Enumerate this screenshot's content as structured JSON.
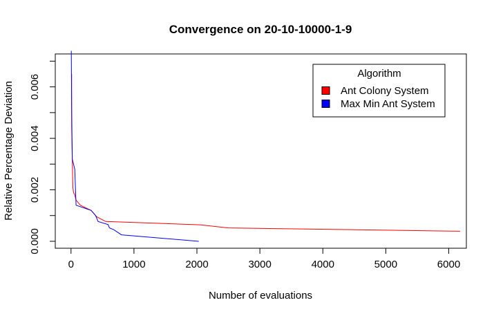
{
  "chart_data": {
    "type": "line",
    "title": "Convergence on 20-10-10000-1-9",
    "xlabel": "Number of evaluations",
    "ylabel": "Relative Percentage Deviation",
    "xlim": [
      -250,
      6280
    ],
    "ylim": [
      -0.00027,
      0.00728
    ],
    "x_ticks": [
      0,
      1000,
      2000,
      3000,
      4000,
      5000,
      6000
    ],
    "x_tick_labels": [
      "0",
      "1000",
      "2000",
      "3000",
      "4000",
      "5000",
      "6000"
    ],
    "y_ticks": [
      0.0,
      0.001,
      0.002,
      0.003,
      0.004,
      0.005,
      0.006,
      0.007
    ],
    "y_tick_labels": [
      "0.000",
      "",
      "0.002",
      "",
      "0.004",
      "",
      "0.006",
      ""
    ],
    "grid": false,
    "legend": {
      "title": "Algorithm",
      "position": "top-right",
      "entries": [
        {
          "label": "Ant Colony System",
          "color": "#ff0000"
        },
        {
          "label": "Max Min Ant System",
          "color": "#0000ff"
        }
      ]
    },
    "series": [
      {
        "name": "Ant Colony System",
        "color": "#ff0000",
        "x": [
          10,
          10,
          20,
          30,
          40,
          60,
          80,
          150,
          320,
          410,
          550,
          2050,
          2500,
          6180
        ],
        "y": [
          0.0065,
          0.0045,
          0.0032,
          0.0021,
          0.0019,
          0.0018,
          0.0016,
          0.0014,
          0.0012,
          0.00095,
          0.00077,
          0.00064,
          0.00052,
          0.00039
        ]
      },
      {
        "name": "Max Min Ant System",
        "color": "#0000ff",
        "x": [
          5,
          10,
          20,
          40,
          60,
          80,
          320,
          390,
          430,
          590,
          610,
          680,
          800,
          2030
        ],
        "y": [
          0.0074,
          0.0052,
          0.0032,
          0.003,
          0.0028,
          0.0014,
          0.0012,
          0.001,
          0.00077,
          0.00065,
          0.00052,
          0.00045,
          0.00025,
          0.0
        ]
      }
    ]
  }
}
